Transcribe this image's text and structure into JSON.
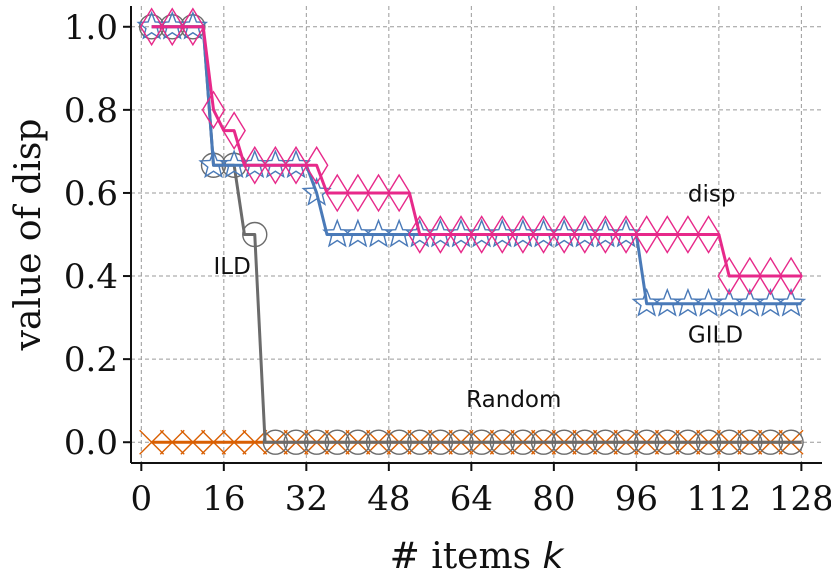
{
  "chart_data": {
    "type": "line",
    "xlabel": "# items k",
    "ylabel": "value of disp",
    "xlim": [
      -2,
      132
    ],
    "ylim": [
      -0.05,
      1.05
    ],
    "xticks": [
      0,
      16,
      32,
      48,
      64,
      80,
      96,
      112,
      128
    ],
    "yticks": [
      0.0,
      0.2,
      0.4,
      0.6,
      0.8,
      1.0
    ],
    "ytick_labels": [
      "0.0",
      "0.2",
      "0.4",
      "0.6",
      "0.8",
      "1.0"
    ],
    "grid": true,
    "annotations": [
      {
        "text": "disp",
        "x": 106,
        "y": 0.58
      },
      {
        "text": "ILD",
        "x": 14,
        "y": 0.405
      },
      {
        "text": "GILD",
        "x": 106,
        "y": 0.24
      },
      {
        "text": "Random",
        "x": 63,
        "y": 0.085
      }
    ],
    "series": [
      {
        "name": "disp",
        "color": "#e7298a",
        "marker": "thin_diamond",
        "x": [
          2,
          4,
          6,
          8,
          10,
          12,
          14,
          16,
          18,
          20,
          22,
          24,
          26,
          28,
          30,
          32,
          34,
          36,
          38,
          40,
          42,
          44,
          46,
          48,
          50,
          52,
          54,
          56,
          58,
          60,
          62,
          64,
          66,
          68,
          70,
          72,
          74,
          76,
          78,
          80,
          82,
          84,
          86,
          88,
          90,
          92,
          94,
          96,
          98,
          100,
          102,
          104,
          106,
          108,
          110,
          112,
          114,
          116,
          118,
          120,
          122,
          124,
          126,
          128
        ],
        "y": [
          1.0,
          1.0,
          1.0,
          1.0,
          1.0,
          1.0,
          0.8,
          0.75,
          0.75,
          0.6667,
          0.6667,
          0.6667,
          0.6667,
          0.6667,
          0.6667,
          0.6667,
          0.6667,
          0.6,
          0.6,
          0.6,
          0.6,
          0.6,
          0.6,
          0.6,
          0.6,
          0.6,
          0.5,
          0.5,
          0.5,
          0.5,
          0.5,
          0.5,
          0.5,
          0.5,
          0.5,
          0.5,
          0.5,
          0.5,
          0.5,
          0.5,
          0.5,
          0.5,
          0.5,
          0.5,
          0.5,
          0.5,
          0.5,
          0.5,
          0.5,
          0.5,
          0.5,
          0.5,
          0.5,
          0.5,
          0.5,
          0.5,
          0.4,
          0.4,
          0.4,
          0.4,
          0.4,
          0.4,
          0.4,
          0.4
        ]
      },
      {
        "name": "GILD",
        "color": "#4a7ab8",
        "marker": "star",
        "x": [
          2,
          4,
          6,
          8,
          10,
          12,
          14,
          16,
          18,
          20,
          22,
          24,
          26,
          28,
          30,
          32,
          34,
          36,
          38,
          40,
          42,
          44,
          46,
          48,
          50,
          52,
          54,
          56,
          58,
          60,
          62,
          64,
          66,
          68,
          70,
          72,
          74,
          76,
          78,
          80,
          82,
          84,
          86,
          88,
          90,
          92,
          94,
          96,
          98,
          100,
          102,
          104,
          106,
          108,
          110,
          112,
          114,
          116,
          118,
          120,
          122,
          124,
          126,
          128
        ],
        "y": [
          1.0,
          1.0,
          1.0,
          1.0,
          1.0,
          1.0,
          0.6667,
          0.6667,
          0.6667,
          0.6667,
          0.6667,
          0.6667,
          0.6667,
          0.6667,
          0.6667,
          0.6667,
          0.6,
          0.5,
          0.5,
          0.5,
          0.5,
          0.5,
          0.5,
          0.5,
          0.5,
          0.5,
          0.5,
          0.5,
          0.5,
          0.5,
          0.5,
          0.5,
          0.5,
          0.5,
          0.5,
          0.5,
          0.5,
          0.5,
          0.5,
          0.5,
          0.5,
          0.5,
          0.5,
          0.5,
          0.5,
          0.5,
          0.5,
          0.5,
          0.3333,
          0.3333,
          0.3333,
          0.3333,
          0.3333,
          0.3333,
          0.3333,
          0.3333,
          0.3333,
          0.3333,
          0.3333,
          0.3333,
          0.3333,
          0.3333,
          0.3333,
          0.3333
        ]
      },
      {
        "name": "ILD",
        "color": "#6b6b6b",
        "marker": "circle",
        "x": [
          2,
          4,
          6,
          8,
          10,
          12,
          14,
          16,
          18,
          20,
          22,
          24,
          26,
          28,
          30,
          32,
          34,
          36,
          38,
          40,
          42,
          44,
          46,
          48,
          50,
          52,
          54,
          56,
          58,
          60,
          62,
          64,
          66,
          68,
          70,
          72,
          74,
          76,
          78,
          80,
          82,
          84,
          86,
          88,
          90,
          92,
          94,
          96,
          98,
          100,
          102,
          104,
          106,
          108,
          110,
          112,
          114,
          116,
          118,
          120,
          122,
          124,
          126,
          128
        ],
        "y": [
          1.0,
          1.0,
          1.0,
          1.0,
          1.0,
          1.0,
          0.6667,
          0.6667,
          0.6667,
          0.5,
          0.5,
          0.0,
          0.0,
          0.0,
          0.0,
          0.0,
          0.0,
          0.0,
          0.0,
          0.0,
          0.0,
          0.0,
          0.0,
          0.0,
          0.0,
          0.0,
          0.0,
          0.0,
          0.0,
          0.0,
          0.0,
          0.0,
          0.0,
          0.0,
          0.0,
          0.0,
          0.0,
          0.0,
          0.0,
          0.0,
          0.0,
          0.0,
          0.0,
          0.0,
          0.0,
          0.0,
          0.0,
          0.0,
          0.0,
          0.0,
          0.0,
          0.0,
          0.0,
          0.0,
          0.0,
          0.0,
          0.0,
          0.0,
          0.0,
          0.0,
          0.0,
          0.0,
          0.0,
          0.0
        ]
      },
      {
        "name": "Random",
        "color": "#d95f02",
        "marker": "x",
        "x": [
          2,
          4,
          6,
          8,
          10,
          12,
          14,
          16,
          18,
          20,
          22,
          24,
          26,
          28,
          30,
          32,
          34,
          36,
          38,
          40,
          42,
          44,
          46,
          48,
          50,
          52,
          54,
          56,
          58,
          60,
          62,
          64,
          66,
          68,
          70,
          72,
          74,
          76,
          78,
          80,
          82,
          84,
          86,
          88,
          90,
          92,
          94,
          96,
          98,
          100,
          102,
          104,
          106,
          108,
          110,
          112,
          114,
          116,
          118,
          120,
          122,
          124,
          126,
          128
        ],
        "y": [
          0.0,
          0.0,
          0.0,
          0.0,
          0.0,
          0.0,
          0.0,
          0.0,
          0.0,
          0.0,
          0.0,
          0.0,
          0.0,
          0.0,
          0.0,
          0.0,
          0.0,
          0.0,
          0.0,
          0.0,
          0.0,
          0.0,
          0.0,
          0.0,
          0.0,
          0.0,
          0.0,
          0.0,
          0.0,
          0.0,
          0.0,
          0.0,
          0.0,
          0.0,
          0.0,
          0.0,
          0.0,
          0.0,
          0.0,
          0.0,
          0.0,
          0.0,
          0.0,
          0.0,
          0.0,
          0.0,
          0.0,
          0.0,
          0.0,
          0.0,
          0.0,
          0.0,
          0.0,
          0.0,
          0.0,
          0.0,
          0.0,
          0.0,
          0.0,
          0.0,
          0.0,
          0.0,
          0.0,
          0.0
        ]
      }
    ],
    "marker_every": 2
  }
}
